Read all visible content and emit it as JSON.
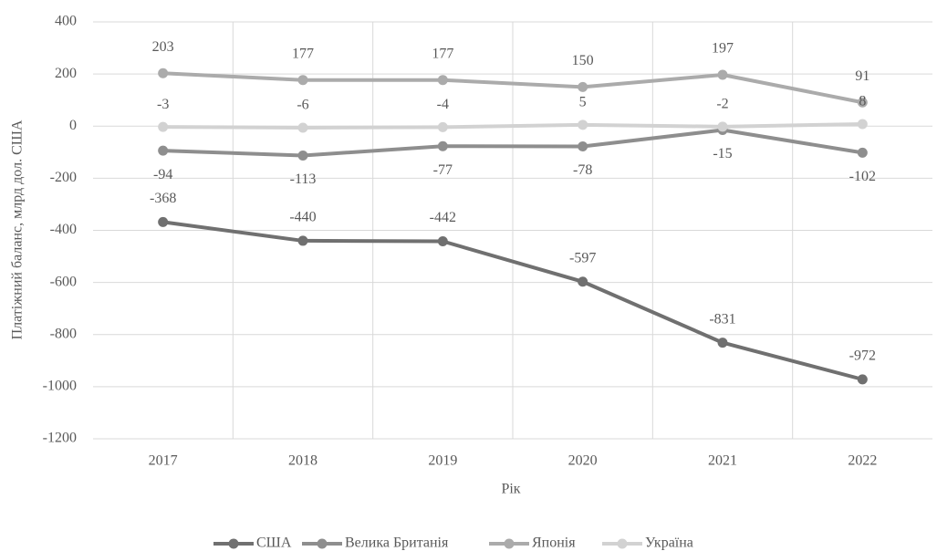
{
  "chart_data": {
    "type": "line",
    "x_label": "Рік",
    "y_label": "Платіжний баланс, млрд дол. США",
    "categories": [
      "2017",
      "2018",
      "2019",
      "2020",
      "2021",
      "2022"
    ],
    "series": [
      {
        "name": "США",
        "color": "#707070",
        "values": [
          -368,
          -440,
          -442,
          -597,
          -831,
          -972
        ]
      },
      {
        "name": "Велика Британія",
        "color": "#8e8e8e",
        "values": [
          -94,
          -113,
          -77,
          -78,
          -15,
          -102
        ]
      },
      {
        "name": "Японія",
        "color": "#ababab",
        "values": [
          203,
          177,
          177,
          150,
          197,
          91
        ]
      },
      {
        "name": "Україна",
        "color": "#d2d2d2",
        "values": [
          -3,
          -6,
          -4,
          5,
          -2,
          8
        ]
      }
    ],
    "ylim": [
      -1200,
      400
    ],
    "yticks": [
      -1200,
      -1000,
      -800,
      -600,
      -400,
      -200,
      0,
      200,
      400
    ],
    "grid": true,
    "legend": "bottom"
  }
}
